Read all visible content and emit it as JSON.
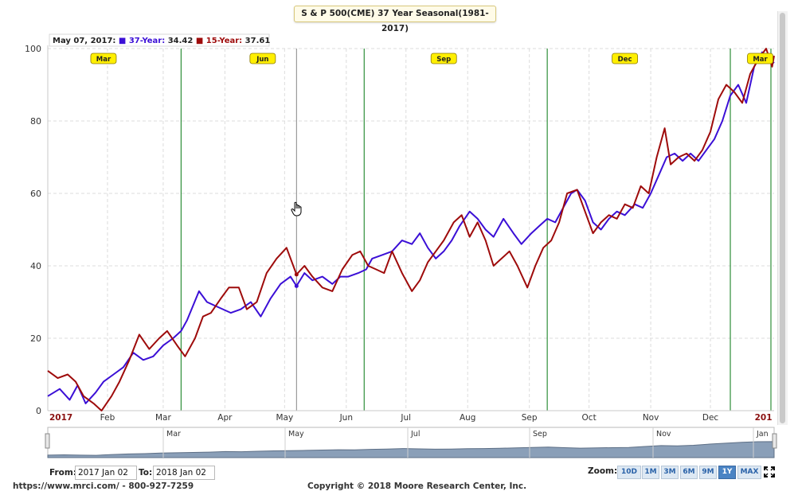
{
  "title": "S & P 500(CME) 37 Year Seasonal(1981-2017)",
  "tooltip": {
    "date": "May 07, 2017:",
    "series": [
      {
        "label": "37-Year:",
        "value": "34.42",
        "color": "#3b0fd6"
      },
      {
        "label": "15-Year:",
        "value": "37.61",
        "color": "#9e0b0b"
      }
    ]
  },
  "chart_data": {
    "type": "line",
    "x_labels": [
      "2017",
      "Feb",
      "Mar",
      "Apr",
      "May",
      "Jun",
      "Jul",
      "Aug",
      "Sep",
      "Oct",
      "Nov",
      "Dec",
      "201"
    ],
    "y_ticks": [
      0,
      20,
      40,
      60,
      80,
      100
    ],
    "ylim": [
      0,
      100
    ],
    "xlim": [
      "2017-01-02",
      "2018-01-02"
    ],
    "grid": true,
    "markers": [
      {
        "label": "Mar",
        "x": "2017-01-30"
      },
      {
        "label": "Jun",
        "x": "2017-04-20"
      },
      {
        "label": "Sep",
        "x": "2017-07-20"
      },
      {
        "label": "Dec",
        "x": "2017-10-19"
      },
      {
        "label": "Mar",
        "x": "2017-12-26"
      }
    ],
    "green_lines": [
      "2017-03-10",
      "2017-06-10",
      "2017-09-10",
      "2017-12-11",
      "2018-01-02"
    ],
    "gray_lines": [
      "2017-05-07"
    ],
    "series": [
      {
        "name": "37-Year",
        "color": "#3b0fd6",
        "points": [
          [
            "2017-01-02",
            4
          ],
          [
            "2017-01-08",
            6
          ],
          [
            "2017-01-13",
            3
          ],
          [
            "2017-01-17",
            7
          ],
          [
            "2017-01-21",
            2
          ],
          [
            "2017-01-26",
            5
          ],
          [
            "2017-01-30",
            8
          ],
          [
            "2017-02-04",
            10
          ],
          [
            "2017-02-09",
            12
          ],
          [
            "2017-02-14",
            16
          ],
          [
            "2017-02-19",
            14
          ],
          [
            "2017-02-24",
            15
          ],
          [
            "2017-03-01",
            18
          ],
          [
            "2017-03-06",
            20
          ],
          [
            "2017-03-10",
            22
          ],
          [
            "2017-03-13",
            25
          ],
          [
            "2017-03-16",
            29
          ],
          [
            "2017-03-19",
            33
          ],
          [
            "2017-03-23",
            30
          ],
          [
            "2017-03-27",
            29
          ],
          [
            "2017-03-31",
            28
          ],
          [
            "2017-04-04",
            27
          ],
          [
            "2017-04-09",
            28
          ],
          [
            "2017-04-14",
            30
          ],
          [
            "2017-04-19",
            26
          ],
          [
            "2017-04-24",
            31
          ],
          [
            "2017-04-29",
            35
          ],
          [
            "2017-05-04",
            37
          ],
          [
            "2017-05-07",
            34.42
          ],
          [
            "2017-05-11",
            38
          ],
          [
            "2017-05-15",
            36
          ],
          [
            "2017-05-20",
            37
          ],
          [
            "2017-05-25",
            35
          ],
          [
            "2017-05-29",
            37
          ],
          [
            "2017-06-02",
            37
          ],
          [
            "2017-06-07",
            38
          ],
          [
            "2017-06-11",
            39
          ],
          [
            "2017-06-14",
            42
          ],
          [
            "2017-06-19",
            43
          ],
          [
            "2017-06-24",
            44
          ],
          [
            "2017-06-29",
            47
          ],
          [
            "2017-07-04",
            46
          ],
          [
            "2017-07-08",
            49
          ],
          [
            "2017-07-12",
            45
          ],
          [
            "2017-07-16",
            42
          ],
          [
            "2017-07-20",
            44
          ],
          [
            "2017-07-24",
            47
          ],
          [
            "2017-07-28",
            51
          ],
          [
            "2017-08-02",
            55
          ],
          [
            "2017-08-06",
            53
          ],
          [
            "2017-08-10",
            50
          ],
          [
            "2017-08-14",
            48
          ],
          [
            "2017-08-19",
            53
          ],
          [
            "2017-08-24",
            49
          ],
          [
            "2017-08-28",
            46
          ],
          [
            "2017-09-02",
            49
          ],
          [
            "2017-09-06",
            51
          ],
          [
            "2017-09-10",
            53
          ],
          [
            "2017-09-14",
            52
          ],
          [
            "2017-09-18",
            56
          ],
          [
            "2017-09-22",
            60
          ],
          [
            "2017-09-25",
            61
          ],
          [
            "2017-09-29",
            58
          ],
          [
            "2017-10-03",
            52
          ],
          [
            "2017-10-07",
            50
          ],
          [
            "2017-10-11",
            53
          ],
          [
            "2017-10-15",
            55
          ],
          [
            "2017-10-19",
            54
          ],
          [
            "2017-10-24",
            57
          ],
          [
            "2017-10-28",
            56
          ],
          [
            "2017-11-01",
            60
          ],
          [
            "2017-11-05",
            65
          ],
          [
            "2017-11-09",
            70
          ],
          [
            "2017-11-13",
            71
          ],
          [
            "2017-11-17",
            69
          ],
          [
            "2017-11-21",
            71
          ],
          [
            "2017-11-25",
            69
          ],
          [
            "2017-11-29",
            72
          ],
          [
            "2017-12-03",
            75
          ],
          [
            "2017-12-07",
            80
          ],
          [
            "2017-12-11",
            87
          ],
          [
            "2017-12-15",
            90
          ],
          [
            "2017-12-19",
            85
          ],
          [
            "2017-12-23",
            95
          ],
          [
            "2017-12-27",
            99
          ],
          [
            "2017-12-31",
            97
          ],
          [
            "2018-01-02",
            96
          ]
        ]
      },
      {
        "name": "15-Year",
        "color": "#9e0b0b",
        "points": [
          [
            "2017-01-02",
            11
          ],
          [
            "2017-01-07",
            9
          ],
          [
            "2017-01-12",
            10
          ],
          [
            "2017-01-16",
            8
          ],
          [
            "2017-01-20",
            4
          ],
          [
            "2017-01-25",
            2
          ],
          [
            "2017-01-29",
            0
          ],
          [
            "2017-02-03",
            4
          ],
          [
            "2017-02-07",
            8
          ],
          [
            "2017-02-12",
            14
          ],
          [
            "2017-02-17",
            21
          ],
          [
            "2017-02-22",
            17
          ],
          [
            "2017-02-27",
            20
          ],
          [
            "2017-03-03",
            22
          ],
          [
            "2017-03-08",
            18
          ],
          [
            "2017-03-12",
            15
          ],
          [
            "2017-03-17",
            20
          ],
          [
            "2017-03-21",
            26
          ],
          [
            "2017-03-25",
            27
          ],
          [
            "2017-03-30",
            31
          ],
          [
            "2017-04-03",
            34
          ],
          [
            "2017-04-08",
            34
          ],
          [
            "2017-04-12",
            28
          ],
          [
            "2017-04-17",
            30
          ],
          [
            "2017-04-22",
            38
          ],
          [
            "2017-04-27",
            42
          ],
          [
            "2017-05-02",
            45
          ],
          [
            "2017-05-07",
            37.61
          ],
          [
            "2017-05-11",
            40
          ],
          [
            "2017-05-15",
            37
          ],
          [
            "2017-05-20",
            34
          ],
          [
            "2017-05-25",
            33
          ],
          [
            "2017-05-30",
            39
          ],
          [
            "2017-06-04",
            43
          ],
          [
            "2017-06-08",
            44
          ],
          [
            "2017-06-12",
            40
          ],
          [
            "2017-06-16",
            39
          ],
          [
            "2017-06-20",
            38
          ],
          [
            "2017-06-24",
            44
          ],
          [
            "2017-06-29",
            38
          ],
          [
            "2017-07-04",
            33
          ],
          [
            "2017-07-08",
            36
          ],
          [
            "2017-07-12",
            41
          ],
          [
            "2017-07-16",
            44
          ],
          [
            "2017-07-20",
            47
          ],
          [
            "2017-07-25",
            52
          ],
          [
            "2017-07-29",
            54
          ],
          [
            "2017-08-02",
            48
          ],
          [
            "2017-08-06",
            52
          ],
          [
            "2017-08-10",
            47
          ],
          [
            "2017-08-14",
            40
          ],
          [
            "2017-08-18",
            42
          ],
          [
            "2017-08-22",
            44
          ],
          [
            "2017-08-26",
            40
          ],
          [
            "2017-08-31",
            34
          ],
          [
            "2017-09-04",
            40
          ],
          [
            "2017-09-08",
            45
          ],
          [
            "2017-09-12",
            47
          ],
          [
            "2017-09-16",
            52
          ],
          [
            "2017-09-20",
            60
          ],
          [
            "2017-09-25",
            61
          ],
          [
            "2017-09-29",
            55
          ],
          [
            "2017-10-03",
            49
          ],
          [
            "2017-10-07",
            52
          ],
          [
            "2017-10-11",
            54
          ],
          [
            "2017-10-15",
            53
          ],
          [
            "2017-10-19",
            57
          ],
          [
            "2017-10-23",
            56
          ],
          [
            "2017-10-27",
            62
          ],
          [
            "2017-10-31",
            60
          ],
          [
            "2017-11-04",
            70
          ],
          [
            "2017-11-08",
            78
          ],
          [
            "2017-11-11",
            68
          ],
          [
            "2017-11-15",
            70
          ],
          [
            "2017-11-19",
            71
          ],
          [
            "2017-11-23",
            69
          ],
          [
            "2017-11-27",
            72
          ],
          [
            "2017-12-01",
            77
          ],
          [
            "2017-12-05",
            86
          ],
          [
            "2017-12-09",
            90
          ],
          [
            "2017-12-13",
            88
          ],
          [
            "2017-12-17",
            85
          ],
          [
            "2017-12-21",
            93
          ],
          [
            "2017-12-25",
            97
          ],
          [
            "2017-12-29",
            100
          ],
          [
            "2018-01-01",
            95
          ],
          [
            "2018-01-02",
            98
          ]
        ]
      }
    ]
  },
  "navigator": {
    "labels": [
      "Mar",
      "May",
      "Jul",
      "Sep",
      "Nov",
      "Jan"
    ],
    "values": [
      6,
      8,
      6,
      5,
      10,
      14,
      16,
      20,
      22,
      24,
      26,
      30,
      29,
      32,
      35,
      36,
      38,
      40,
      42,
      41,
      45,
      47,
      50,
      48,
      46,
      47,
      49,
      50,
      52,
      55,
      58,
      60,
      56,
      53,
      55,
      56,
      58,
      64,
      70,
      68,
      72,
      80,
      86,
      92,
      96,
      97
    ]
  },
  "range": {
    "from_label": "From:",
    "from_value": "2017 Jan 02",
    "to_label": "To:",
    "to_value": "2018 Jan 02"
  },
  "zoom": {
    "label": "Zoom:",
    "buttons": [
      {
        "label": "10D",
        "active": false
      },
      {
        "label": "1M",
        "active": false
      },
      {
        "label": "3M",
        "active": false
      },
      {
        "label": "6M",
        "active": false
      },
      {
        "label": "9M",
        "active": false
      },
      {
        "label": "1Y",
        "active": true
      },
      {
        "label": "MAX",
        "active": false
      }
    ]
  },
  "footer": {
    "left": "https://www.mrci.com/ - 800-927-7259",
    "center": "Copyright © 2018 Moore Research Center, Inc."
  }
}
